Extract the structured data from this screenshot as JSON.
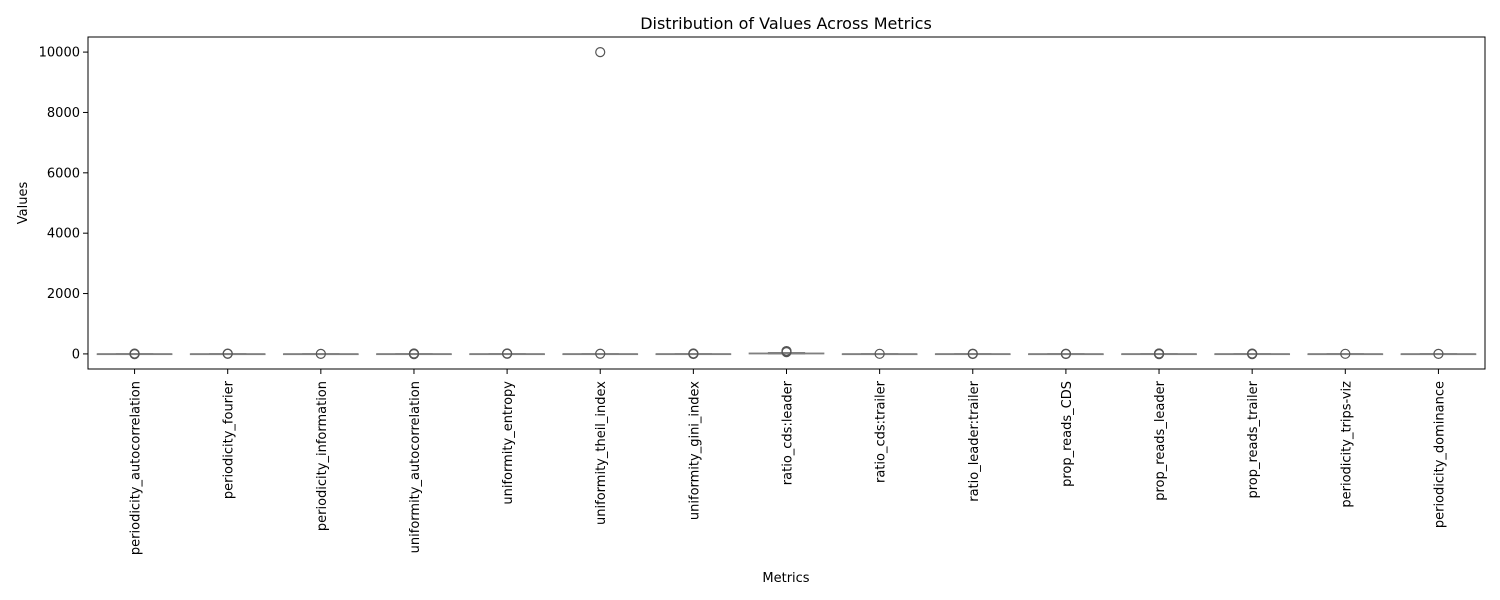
{
  "chart_data": {
    "type": "box",
    "title": "Distribution of Values Across Metrics",
    "xlabel": "Metrics",
    "ylabel": "Values",
    "ylim": [
      -500,
      10500
    ],
    "yticks": [
      0,
      2000,
      4000,
      6000,
      8000,
      10000
    ],
    "grid": false,
    "colors": {
      "box_line": "#808080",
      "outlier": "#555555",
      "axis": "#000000"
    },
    "categories": [
      "periodicity_autocorrelation",
      "periodicity_fourier",
      "periodicity_information",
      "uniformity_autocorrelation",
      "uniformity_entropy",
      "uniformity_theil_index",
      "uniformity_gini_index",
      "ratio_cds:leader",
      "ratio_cds:trailer",
      "ratio_leader:trailer",
      "prop_reads_CDS",
      "prop_reads_leader",
      "prop_reads_trailer",
      "periodicity_trips-viz",
      "periodicity_dominance"
    ],
    "series": [
      {
        "name": "",
        "boxes": [
          {
            "category": "periodicity_autocorrelation",
            "q1": 0,
            "median": 0,
            "q3": 1,
            "whisker_low": 0,
            "whisker_high": 1,
            "outliers": [
              -8,
              5,
              12
            ]
          },
          {
            "category": "periodicity_fourier",
            "q1": 0,
            "median": 0,
            "q3": 0,
            "whisker_low": 0,
            "whisker_high": 0,
            "outliers": [
              4,
              9
            ]
          },
          {
            "category": "periodicity_information",
            "q1": 0,
            "median": 0,
            "q3": 0,
            "whisker_low": 0,
            "whisker_high": 0,
            "outliers": [
              2
            ]
          },
          {
            "category": "uniformity_autocorrelation",
            "q1": 0,
            "median": 0,
            "q3": 1,
            "whisker_low": 0,
            "whisker_high": 1,
            "outliers": [
              -6,
              6,
              14
            ]
          },
          {
            "category": "uniformity_entropy",
            "q1": 0,
            "median": 0,
            "q3": 1,
            "whisker_low": 0,
            "whisker_high": 2,
            "outliers": [
              5,
              15
            ]
          },
          {
            "category": "uniformity_theil_index",
            "q1": 0,
            "median": 0,
            "q3": 1,
            "whisker_low": 0,
            "whisker_high": 2,
            "outliers": [
              10000,
              6
            ]
          },
          {
            "category": "uniformity_gini_index",
            "q1": 0,
            "median": 0,
            "q3": 1,
            "whisker_low": 0,
            "whisker_high": 1,
            "outliers": [
              -5,
              7,
              16
            ]
          },
          {
            "category": "ratio_cds:leader",
            "q1": 5,
            "median": 12,
            "q3": 25,
            "whisker_low": 0,
            "whisker_high": 45,
            "outliers": [
              60,
              80,
              95
            ]
          },
          {
            "category": "ratio_cds:trailer",
            "q1": 0,
            "median": 0,
            "q3": 0,
            "whisker_low": 0,
            "whisker_high": 0,
            "outliers": [
              3
            ]
          },
          {
            "category": "ratio_leader:trailer",
            "q1": 0,
            "median": 0,
            "q3": 1,
            "whisker_low": 0,
            "whisker_high": 1,
            "outliers": [
              -4,
              8
            ]
          },
          {
            "category": "prop_reads_CDS",
            "q1": 0,
            "median": 0,
            "q3": 0,
            "whisker_low": 0,
            "whisker_high": 0,
            "outliers": [
              -3,
              6
            ]
          },
          {
            "category": "prop_reads_leader",
            "q1": 0,
            "median": 0,
            "q3": 1,
            "whisker_low": 0,
            "whisker_high": 1,
            "outliers": [
              -7,
              9,
              15
            ]
          },
          {
            "category": "prop_reads_trailer",
            "q1": 0,
            "median": 0,
            "q3": 1,
            "whisker_low": 0,
            "whisker_high": 1,
            "outliers": [
              -6,
              5,
              12
            ]
          },
          {
            "category": "periodicity_trips-viz",
            "q1": 0,
            "median": 0,
            "q3": 0,
            "whisker_low": 0,
            "whisker_high": 0,
            "outliers": [
              3
            ]
          },
          {
            "category": "periodicity_dominance",
            "q1": 0,
            "median": 0,
            "q3": 0,
            "whisker_low": 0,
            "whisker_high": 0,
            "outliers": [
              2
            ]
          }
        ]
      }
    ]
  }
}
